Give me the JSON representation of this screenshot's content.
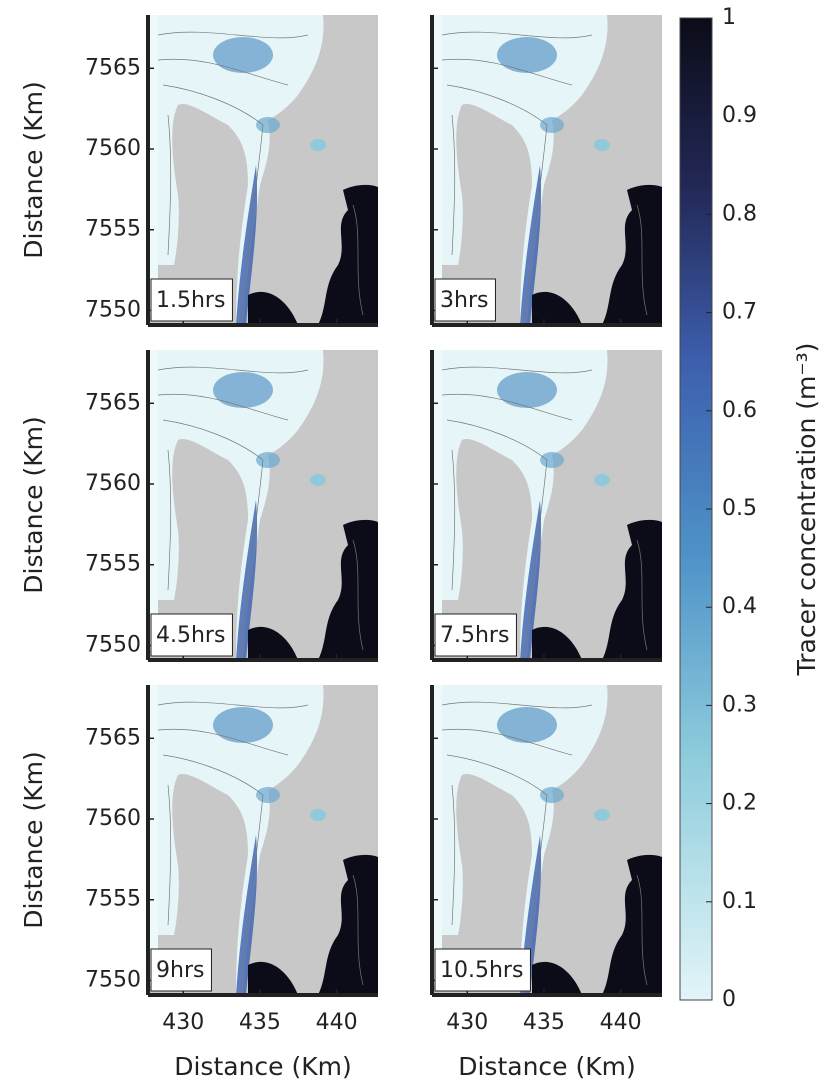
{
  "chart_data": {
    "type": "map",
    "panels": [
      {
        "label": "1.5hrs"
      },
      {
        "label": "3hrs"
      },
      {
        "label": "4.5hrs"
      },
      {
        "label": "7.5hrs"
      },
      {
        "label": "9hrs"
      },
      {
        "label": "10.5hrs"
      }
    ],
    "xlabel": "Distance (Km)",
    "ylabel": "Distance (Km)",
    "xlim": [
      427.7,
      442.7
    ],
    "xticks": [
      430,
      435,
      440
    ],
    "ylim": [
      7549.1,
      7568.3
    ],
    "yticks": [
      7550,
      7555,
      7560,
      7565
    ],
    "colorbar": {
      "label": "Tracer concentration (m⁻³)",
      "lim": [
        0,
        1
      ],
      "ticks": [
        0,
        0.1,
        0.2,
        0.3,
        0.4,
        0.5,
        0.6,
        0.7,
        0.8,
        0.9,
        1
      ]
    }
  }
}
